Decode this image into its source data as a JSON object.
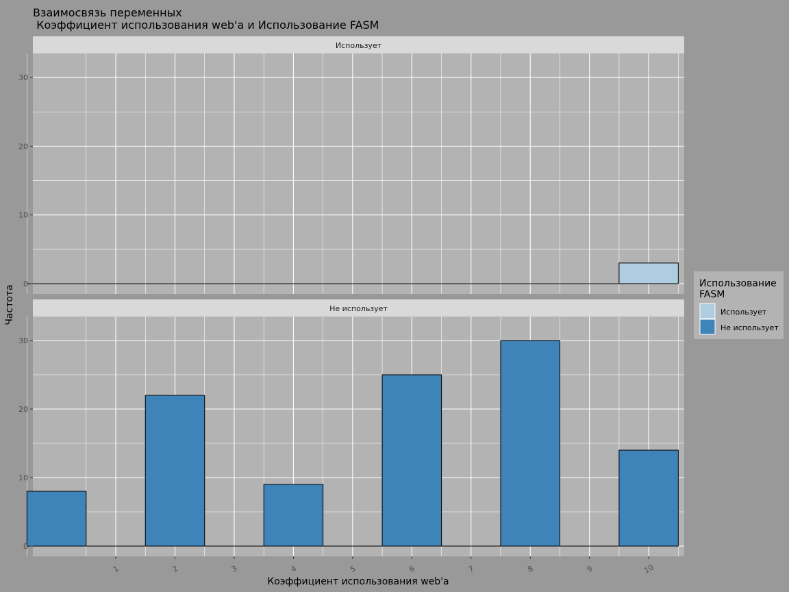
{
  "chart_data": {
    "type": "bar",
    "title": "Взаимосвязь переменных",
    "subtitle": " Коэффициент использования web'a и Использование FASM",
    "xlabel": "Коэффициент использования web'a",
    "ylabel": "Частота",
    "x_ticks": [
      "1",
      "2",
      "3",
      "4",
      "5",
      "6",
      "7",
      "8",
      "9",
      "10"
    ],
    "y_ticks": [
      0,
      10,
      20,
      30
    ],
    "ylim": [
      -1.5,
      33.5
    ],
    "xlim": [
      -0.4,
      10.6
    ],
    "bin_width": 1,
    "grid": true,
    "legend_position": "right",
    "legend": {
      "title_line1": "Использование",
      "title_line2": "FASM",
      "items": [
        {
          "label": "Использует",
          "color": "#afcde0"
        },
        {
          "label": "Не использует",
          "color": "#3f84b8"
        }
      ]
    },
    "panels": [
      {
        "strip": "Использует",
        "color": "#afcde0",
        "bins": [
          {
            "x": 0,
            "value": 0
          },
          {
            "x": 1,
            "value": 0
          },
          {
            "x": 2,
            "value": 0
          },
          {
            "x": 3,
            "value": 0
          },
          {
            "x": 4,
            "value": 0
          },
          {
            "x": 5,
            "value": 0
          },
          {
            "x": 6,
            "value": 0
          },
          {
            "x": 7,
            "value": 0
          },
          {
            "x": 8,
            "value": 0
          },
          {
            "x": 9,
            "value": 0
          },
          {
            "x": 10,
            "value": 3
          }
        ]
      },
      {
        "strip": "Не использует",
        "color": "#3f84b8",
        "bins": [
          {
            "x": 0,
            "value": 8
          },
          {
            "x": 1,
            "value": 0
          },
          {
            "x": 2,
            "value": 22
          },
          {
            "x": 3,
            "value": 0
          },
          {
            "x": 4,
            "value": 9
          },
          {
            "x": 5,
            "value": 0
          },
          {
            "x": 6,
            "value": 25
          },
          {
            "x": 7,
            "value": 0
          },
          {
            "x": 8,
            "value": 30
          },
          {
            "x": 9,
            "value": 0
          },
          {
            "x": 10,
            "value": 14
          }
        ]
      }
    ]
  }
}
